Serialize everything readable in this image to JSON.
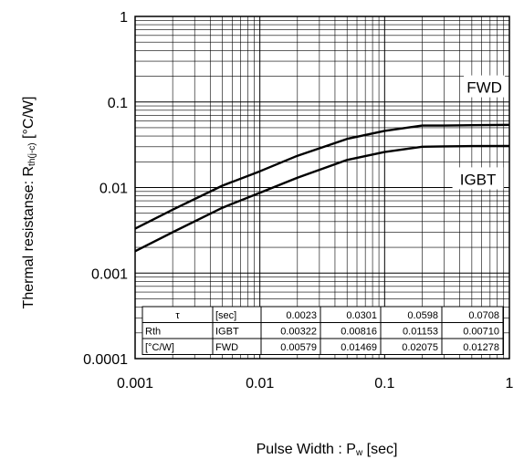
{
  "chart_data": {
    "type": "line",
    "x_scale": "log",
    "y_scale": "log",
    "xlim": [
      0.001,
      1
    ],
    "ylim": [
      0.0001,
      1
    ],
    "grid": true,
    "ylabel_main": "Thermal resistanse: R",
    "ylabel_sub": "th(j-c)",
    "ylabel_unit": " [°C/W]",
    "xlabel_main": "Pulse Width : P",
    "xlabel_sub": "w",
    "xlabel_unit": " [sec]",
    "x_ticks": [
      {
        "value": 0.001,
        "label": "0.001"
      },
      {
        "value": 0.01,
        "label": "0.01"
      },
      {
        "value": 0.1,
        "label": "0.1"
      },
      {
        "value": 1,
        "label": "1"
      }
    ],
    "y_ticks": [
      {
        "value": 0.0001,
        "label": "0.0001"
      },
      {
        "value": 0.001,
        "label": "0.001"
      },
      {
        "value": 0.01,
        "label": "0.01"
      },
      {
        "value": 0.1,
        "label": "0.1"
      },
      {
        "value": 1,
        "label": "1"
      }
    ],
    "series": [
      {
        "name": "FWD",
        "x": [
          0.001,
          0.002,
          0.005,
          0.01,
          0.02,
          0.05,
          0.1,
          0.2,
          0.3,
          0.5,
          1
        ],
        "y": [
          0.0033,
          0.0055,
          0.0105,
          0.0155,
          0.0235,
          0.037,
          0.046,
          0.053,
          0.053,
          0.0535,
          0.054
        ]
      },
      {
        "name": "IGBT",
        "x": [
          0.001,
          0.002,
          0.005,
          0.01,
          0.02,
          0.05,
          0.1,
          0.2,
          0.3,
          0.5,
          1
        ],
        "y": [
          0.0018,
          0.003,
          0.0058,
          0.0087,
          0.013,
          0.021,
          0.026,
          0.03,
          0.0303,
          0.0305,
          0.0306
        ]
      }
    ],
    "table": {
      "rows": [
        [
          "τ",
          "[sec]",
          "0.0023",
          "0.0301",
          "0.0598",
          "0.0708"
        ],
        [
          "Rth",
          "IGBT",
          "0.00322",
          "0.00816",
          "0.01153",
          "0.00710"
        ],
        [
          "[°C/W]",
          "FWD",
          "0.00579",
          "0.01469",
          "0.02075",
          "0.01278"
        ]
      ]
    }
  }
}
